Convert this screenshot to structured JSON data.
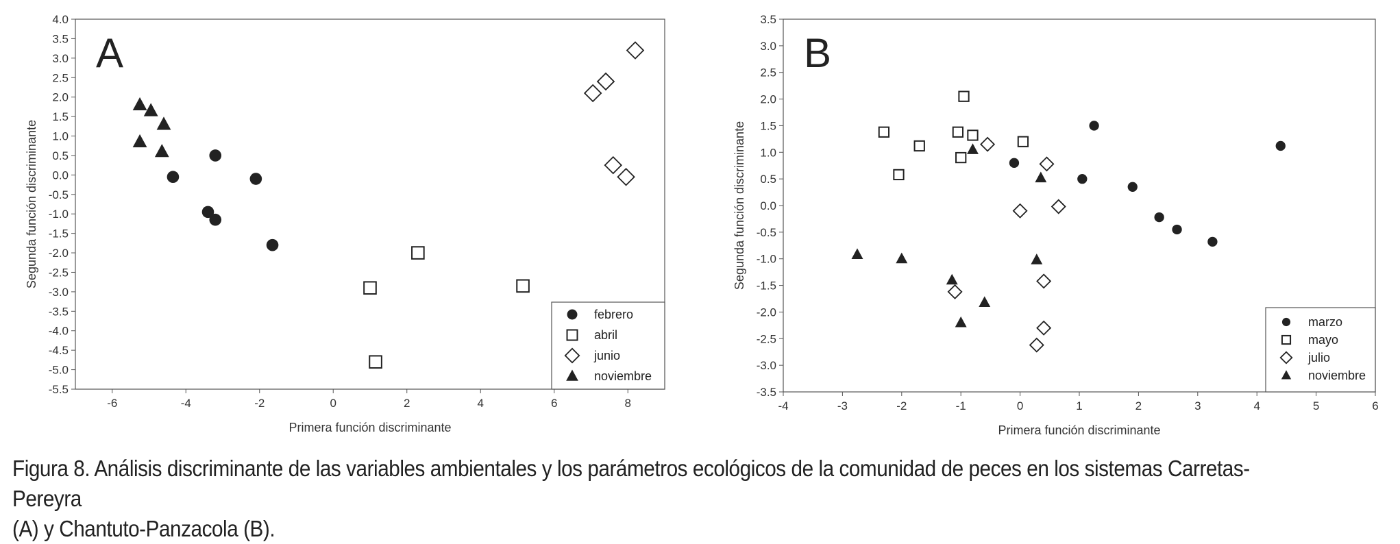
{
  "caption": {
    "line1": "Figura 8. Análisis discriminante de las variables ambientales y  los parámetros ecológicos de la comunidad de peces en los sistemas Carretas-Pereyra",
    "line2": "(A) y  Chantuto-Panzacola (B)."
  },
  "chart_data": [
    {
      "type": "scatter",
      "panel_label": "A",
      "xlabel": "Primera función discriminante",
      "ylabel": "Segunda función discriminante",
      "xlim": [
        -7,
        9
      ],
      "ylim": [
        -5.5,
        4.0
      ],
      "xticks": [
        -6,
        -4,
        -2,
        0,
        2,
        4,
        6,
        8
      ],
      "yticks": [
        "4.0",
        "3.5",
        "3.0",
        "2.5",
        "2.0",
        "1.5",
        "1.0",
        "0.5",
        "0.0",
        "-0.5",
        "-1.0",
        "-1.5",
        "-2.0",
        "-2.5",
        "-3.0",
        "-3.5",
        "-4.0",
        "-4.5",
        "-5.0",
        "-5.5"
      ],
      "grid": false,
      "legend_position": "bottom-right",
      "series": [
        {
          "name": "febrero",
          "marker": "circle",
          "points": [
            [
              -3.2,
              0.5
            ],
            [
              -4.35,
              -0.05
            ],
            [
              -2.1,
              -0.1
            ],
            [
              -3.4,
              -0.95
            ],
            [
              -3.2,
              -1.15
            ],
            [
              -1.65,
              -1.8
            ]
          ]
        },
        {
          "name": "abril",
          "marker": "square",
          "points": [
            [
              2.3,
              -2.0
            ],
            [
              1.0,
              -2.9
            ],
            [
              5.15,
              -2.85
            ],
            [
              1.15,
              -4.8
            ]
          ]
        },
        {
          "name": "junio",
          "marker": "diamond",
          "points": [
            [
              8.2,
              3.2
            ],
            [
              7.4,
              2.4
            ],
            [
              7.05,
              2.1
            ],
            [
              7.6,
              0.25
            ],
            [
              7.95,
              -0.05
            ]
          ]
        },
        {
          "name": "noviembre",
          "marker": "triangle",
          "points": [
            [
              -5.25,
              1.8
            ],
            [
              -4.95,
              1.65
            ],
            [
              -4.6,
              1.3
            ],
            [
              -5.25,
              0.85
            ],
            [
              -4.65,
              0.6
            ]
          ]
        }
      ]
    },
    {
      "type": "scatter",
      "panel_label": "B",
      "xlabel": "Primera función discriminante",
      "ylabel": "Segunda función discriminante",
      "xlim": [
        -4,
        6
      ],
      "ylim": [
        -3.5,
        3.5
      ],
      "xticks": [
        -4,
        -3,
        -2,
        -1,
        0,
        1,
        2,
        3,
        4,
        5,
        6
      ],
      "yticks": [
        "3.5",
        "3.0",
        "2.5",
        "2.0",
        "1.5",
        "1.0",
        "0.5",
        "0.0",
        "-0.5",
        "-1.0",
        "-1.5",
        "-2.0",
        "-2.5",
        "-3.0",
        "-3.5"
      ],
      "grid": false,
      "legend_position": "bottom-right",
      "series": [
        {
          "name": "marzo",
          "marker": "circle",
          "points": [
            [
              -0.1,
              0.8
            ],
            [
              1.25,
              1.5
            ],
            [
              1.05,
              0.5
            ],
            [
              1.9,
              0.35
            ],
            [
              2.35,
              -0.22
            ],
            [
              2.65,
              -0.45
            ],
            [
              3.25,
              -0.68
            ],
            [
              4.4,
              1.12
            ]
          ]
        },
        {
          "name": "mayo",
          "marker": "square",
          "points": [
            [
              -2.3,
              1.38
            ],
            [
              -1.7,
              1.12
            ],
            [
              -2.05,
              0.58
            ],
            [
              -1.05,
              1.38
            ],
            [
              -0.95,
              2.05
            ],
            [
              -0.8,
              1.32
            ],
            [
              -1.0,
              0.9
            ],
            [
              0.05,
              1.2
            ]
          ]
        },
        {
          "name": "julio",
          "marker": "diamond",
          "points": [
            [
              -0.55,
              1.15
            ],
            [
              0.45,
              0.78
            ],
            [
              0.0,
              -0.1
            ],
            [
              0.65,
              -0.02
            ],
            [
              -1.1,
              -1.62
            ],
            [
              0.4,
              -1.42
            ],
            [
              0.4,
              -2.3
            ],
            [
              0.28,
              -2.62
            ]
          ]
        },
        {
          "name": "noviembre",
          "marker": "triangle",
          "points": [
            [
              -0.8,
              1.05
            ],
            [
              0.35,
              0.52
            ],
            [
              -2.75,
              -0.92
            ],
            [
              -2.0,
              -1.0
            ],
            [
              -1.15,
              -1.4
            ],
            [
              -1.0,
              -2.2
            ],
            [
              -0.6,
              -1.82
            ],
            [
              0.28,
              -1.02
            ]
          ]
        }
      ]
    }
  ]
}
